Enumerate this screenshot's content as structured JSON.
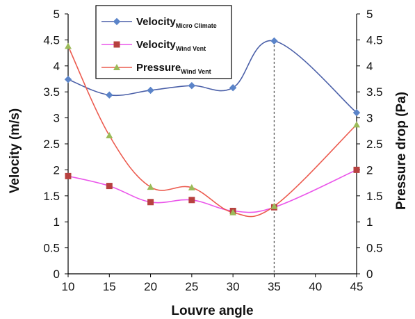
{
  "chart_data": {
    "type": "line",
    "xlabel": "Louvre angle",
    "ylabel": "Velocity (m/s)",
    "y2label": "Pressure drop (Pa)",
    "x": [
      10,
      15,
      20,
      25,
      30,
      35,
      40,
      45
    ],
    "xlim": [
      10,
      45
    ],
    "ylim": [
      0,
      5
    ],
    "y2lim": [
      0,
      5
    ],
    "y_ticks": [
      "0",
      "0.5",
      "1",
      "1.5",
      "2",
      "2.5",
      "3",
      "3.5",
      "4",
      "4.5",
      "5"
    ],
    "x_ticks": [
      "10",
      "15",
      "20",
      "25",
      "30",
      "35",
      "40",
      "45"
    ],
    "grid": false,
    "legend_position": "top-left",
    "reference_line": {
      "x": 35,
      "style": "dotted"
    },
    "series": [
      {
        "name": "Velocity",
        "name_sub": "Micro Climate",
        "color": "#4a5fa8",
        "marker": "diamond",
        "marker_color": "#5b84c9",
        "axis": "left",
        "points": [
          [
            10,
            3.74
          ],
          [
            15,
            3.44
          ],
          [
            20,
            3.53
          ],
          [
            25,
            3.62
          ],
          [
            30,
            3.58
          ],
          [
            35,
            4.48
          ],
          [
            45,
            3.1
          ]
        ]
      },
      {
        "name": "Velocity",
        "name_sub": "Wind Vent",
        "color": "#ea55ea",
        "marker": "square",
        "marker_color": "#b7413f",
        "axis": "left",
        "points": [
          [
            10,
            1.88
          ],
          [
            15,
            1.69
          ],
          [
            20,
            1.38
          ],
          [
            25,
            1.42
          ],
          [
            30,
            1.21
          ],
          [
            35,
            1.28
          ],
          [
            45,
            2.0
          ]
        ]
      },
      {
        "name": "Pressure",
        "name_sub": "Wind Vent",
        "color": "#ec5b4f",
        "marker": "triangle",
        "marker_color": "#9bbb59",
        "axis": "right",
        "points": [
          [
            10,
            4.38
          ],
          [
            15,
            2.66
          ],
          [
            20,
            1.67
          ],
          [
            25,
            1.66
          ],
          [
            30,
            1.18
          ],
          [
            35,
            1.3
          ],
          [
            45,
            2.87
          ]
        ]
      }
    ]
  }
}
